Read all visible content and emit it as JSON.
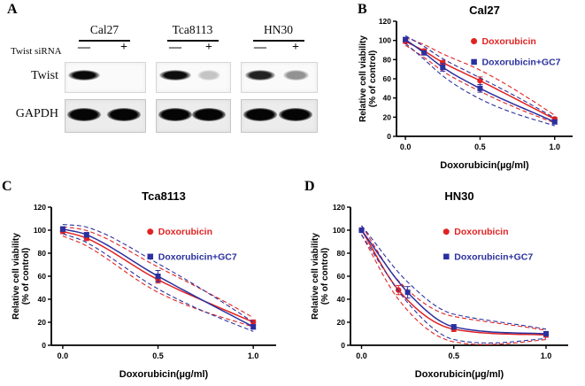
{
  "panelA": {
    "label": "A",
    "sirna_label": "Twist siRNA",
    "minus_symbol": "—",
    "plus_symbol": "+",
    "row_labels": [
      "Twist",
      "GAPDH"
    ],
    "groups": [
      {
        "name": "Cal27",
        "twist": [
          1.0,
          0.0
        ],
        "gapdh": [
          1.0,
          1.0
        ]
      },
      {
        "name": "Tca8113",
        "twist": [
          0.95,
          0.05
        ],
        "gapdh": [
          1.0,
          1.0
        ]
      },
      {
        "name": "HN30",
        "twist": [
          0.85,
          0.3
        ],
        "gapdh": [
          1.0,
          1.0
        ]
      }
    ]
  },
  "colors": {
    "doxorubicin": "#e02322",
    "doxorubicin_gc7": "#2b309f"
  },
  "chart_data": [
    {
      "type": "line",
      "panel": "B",
      "title": "Cal27",
      "xlabel": "Doxorubicin(µg/ml)",
      "ylabel_lines": [
        "Relative cell viability",
        "(% of control)"
      ],
      "xlim": [
        -0.06,
        1.12
      ],
      "ylim": [
        0,
        120
      ],
      "xticks": [
        0,
        0.5,
        1.0
      ],
      "xtick_labels": [
        "0.0",
        "0.5",
        "1.0"
      ],
      "yticks": [
        0,
        20,
        40,
        60,
        80,
        100,
        120
      ],
      "legend_position": "right-middle",
      "series": [
        {
          "name": "Doxorubicin",
          "color": "#e02322",
          "marker": "circle",
          "x": [
            0,
            0.125,
            0.25,
            0.5,
            1.0
          ],
          "y": [
            99,
            89,
            77,
            58,
            18
          ],
          "err": [
            2,
            2,
            2,
            4,
            2
          ]
        },
        {
          "name": "Doxorubicin+GC7",
          "color": "#2b309f",
          "marker": "square",
          "x": [
            0,
            0.125,
            0.25,
            0.5,
            1.0
          ],
          "y": [
            101,
            87,
            72,
            50,
            15
          ],
          "err": [
            2,
            2,
            4,
            4,
            2
          ]
        }
      ]
    },
    {
      "type": "line",
      "panel": "C",
      "title": "Tca8113",
      "xlabel": "Doxorubicin(µg/ml)",
      "ylabel_lines": [
        "Relative cell viability",
        "(% of control)"
      ],
      "xlim": [
        -0.06,
        1.12
      ],
      "ylim": [
        0,
        120
      ],
      "xticks": [
        0,
        0.5,
        1.0
      ],
      "xtick_labels": [
        "0.0",
        "0.5",
        "1.0"
      ],
      "yticks": [
        0,
        20,
        40,
        60,
        80,
        100,
        120
      ],
      "legend_position": "right-middle",
      "series": [
        {
          "name": "Doxorubicin",
          "color": "#e02322",
          "marker": "circle",
          "x": [
            0,
            0.125,
            0.5,
            1.0
          ],
          "y": [
            99,
            93,
            57,
            20
          ],
          "err": [
            2,
            2,
            3,
            2
          ]
        },
        {
          "name": "Doxorubicin+GC7",
          "color": "#2b309f",
          "marker": "square",
          "x": [
            0,
            0.125,
            0.5,
            1.0
          ],
          "y": [
            101,
            96,
            60,
            16
          ],
          "err": [
            2,
            2,
            5,
            2
          ]
        }
      ]
    },
    {
      "type": "line",
      "panel": "D",
      "title": "HN30",
      "xlabel": "Doxorubicin(µg/ml)",
      "ylabel_lines": [
        "Relative cell viability",
        "(% of control)"
      ],
      "xlim": [
        -0.06,
        1.12
      ],
      "ylim": [
        0,
        120
      ],
      "xticks": [
        0,
        0.5,
        1.0
      ],
      "xtick_labels": [
        "0.0",
        "0.5",
        "1.0"
      ],
      "yticks": [
        0,
        20,
        40,
        60,
        80,
        100,
        120
      ],
      "legend_position": "right-middle",
      "series": [
        {
          "name": "Doxorubicin",
          "color": "#e02322",
          "marker": "circle",
          "x": [
            0,
            0.2,
            0.5,
            1.0
          ],
          "y": [
            100,
            48,
            14,
            9
          ],
          "err": [
            2,
            4,
            2,
            2
          ]
        },
        {
          "name": "Doxorubicin+GC7",
          "color": "#2b309f",
          "marker": "square",
          "x": [
            0,
            0.25,
            0.5,
            1.0
          ],
          "y": [
            100,
            46,
            16,
            10
          ],
          "err": [
            2,
            5,
            2,
            2
          ]
        }
      ]
    }
  ]
}
